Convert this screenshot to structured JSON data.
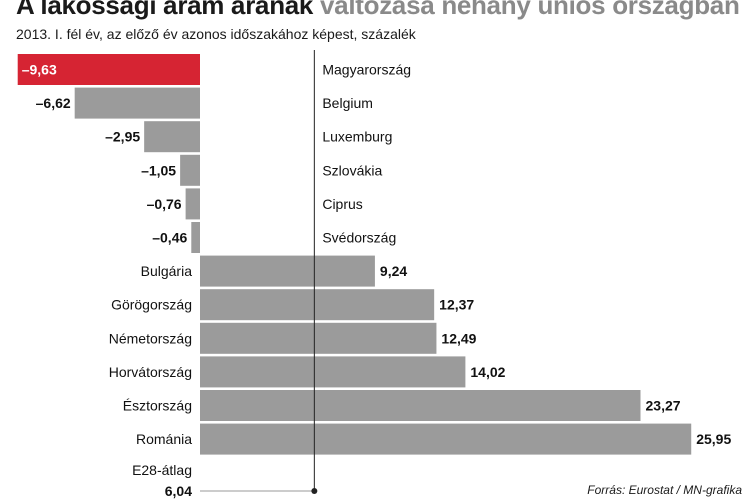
{
  "title_part1": "A lakossági áram árának",
  "title_part2": "változása néhány uniós országban",
  "subtitle": "2013. I. fél év, az előző év azonos időszakához képest, százalék",
  "source": "Forrás: Eurostat / MN-grafika",
  "colors": {
    "highlight": "#d62433",
    "bar": "#9b9b9b",
    "axis": "#222222"
  },
  "chart_data": {
    "type": "bar",
    "orientation": "horizontal",
    "title": "A lakossági áram árának változása néhány uniós országban",
    "subtitle": "2013. I. fél év, az előző év azonos időszakához képest, százalék",
    "categories": [
      "Magyarország",
      "Belgium",
      "Luxemburg",
      "Szlovákia",
      "Ciprus",
      "Svédország",
      "Bulgária",
      "Görögország",
      "Németország",
      "Horvátország",
      "Észtország",
      "Románia"
    ],
    "values": [
      -9.63,
      -6.62,
      -2.95,
      -1.05,
      -0.76,
      -0.46,
      9.24,
      12.37,
      12.49,
      14.02,
      23.27,
      25.95
    ],
    "value_labels": [
      "–9,63",
      "–6,62",
      "–2,95",
      "–1,05",
      "–0,76",
      "–0,46",
      "9,24",
      "12,37",
      "12,49",
      "14,02",
      "23,27",
      "25,95"
    ],
    "highlight": "Magyarország",
    "reference": {
      "label": "E28-átlag",
      "value": 6.04,
      "value_label": "6,04"
    },
    "xlim": [
      -10,
      27
    ],
    "grid": false,
    "legend": "none"
  }
}
